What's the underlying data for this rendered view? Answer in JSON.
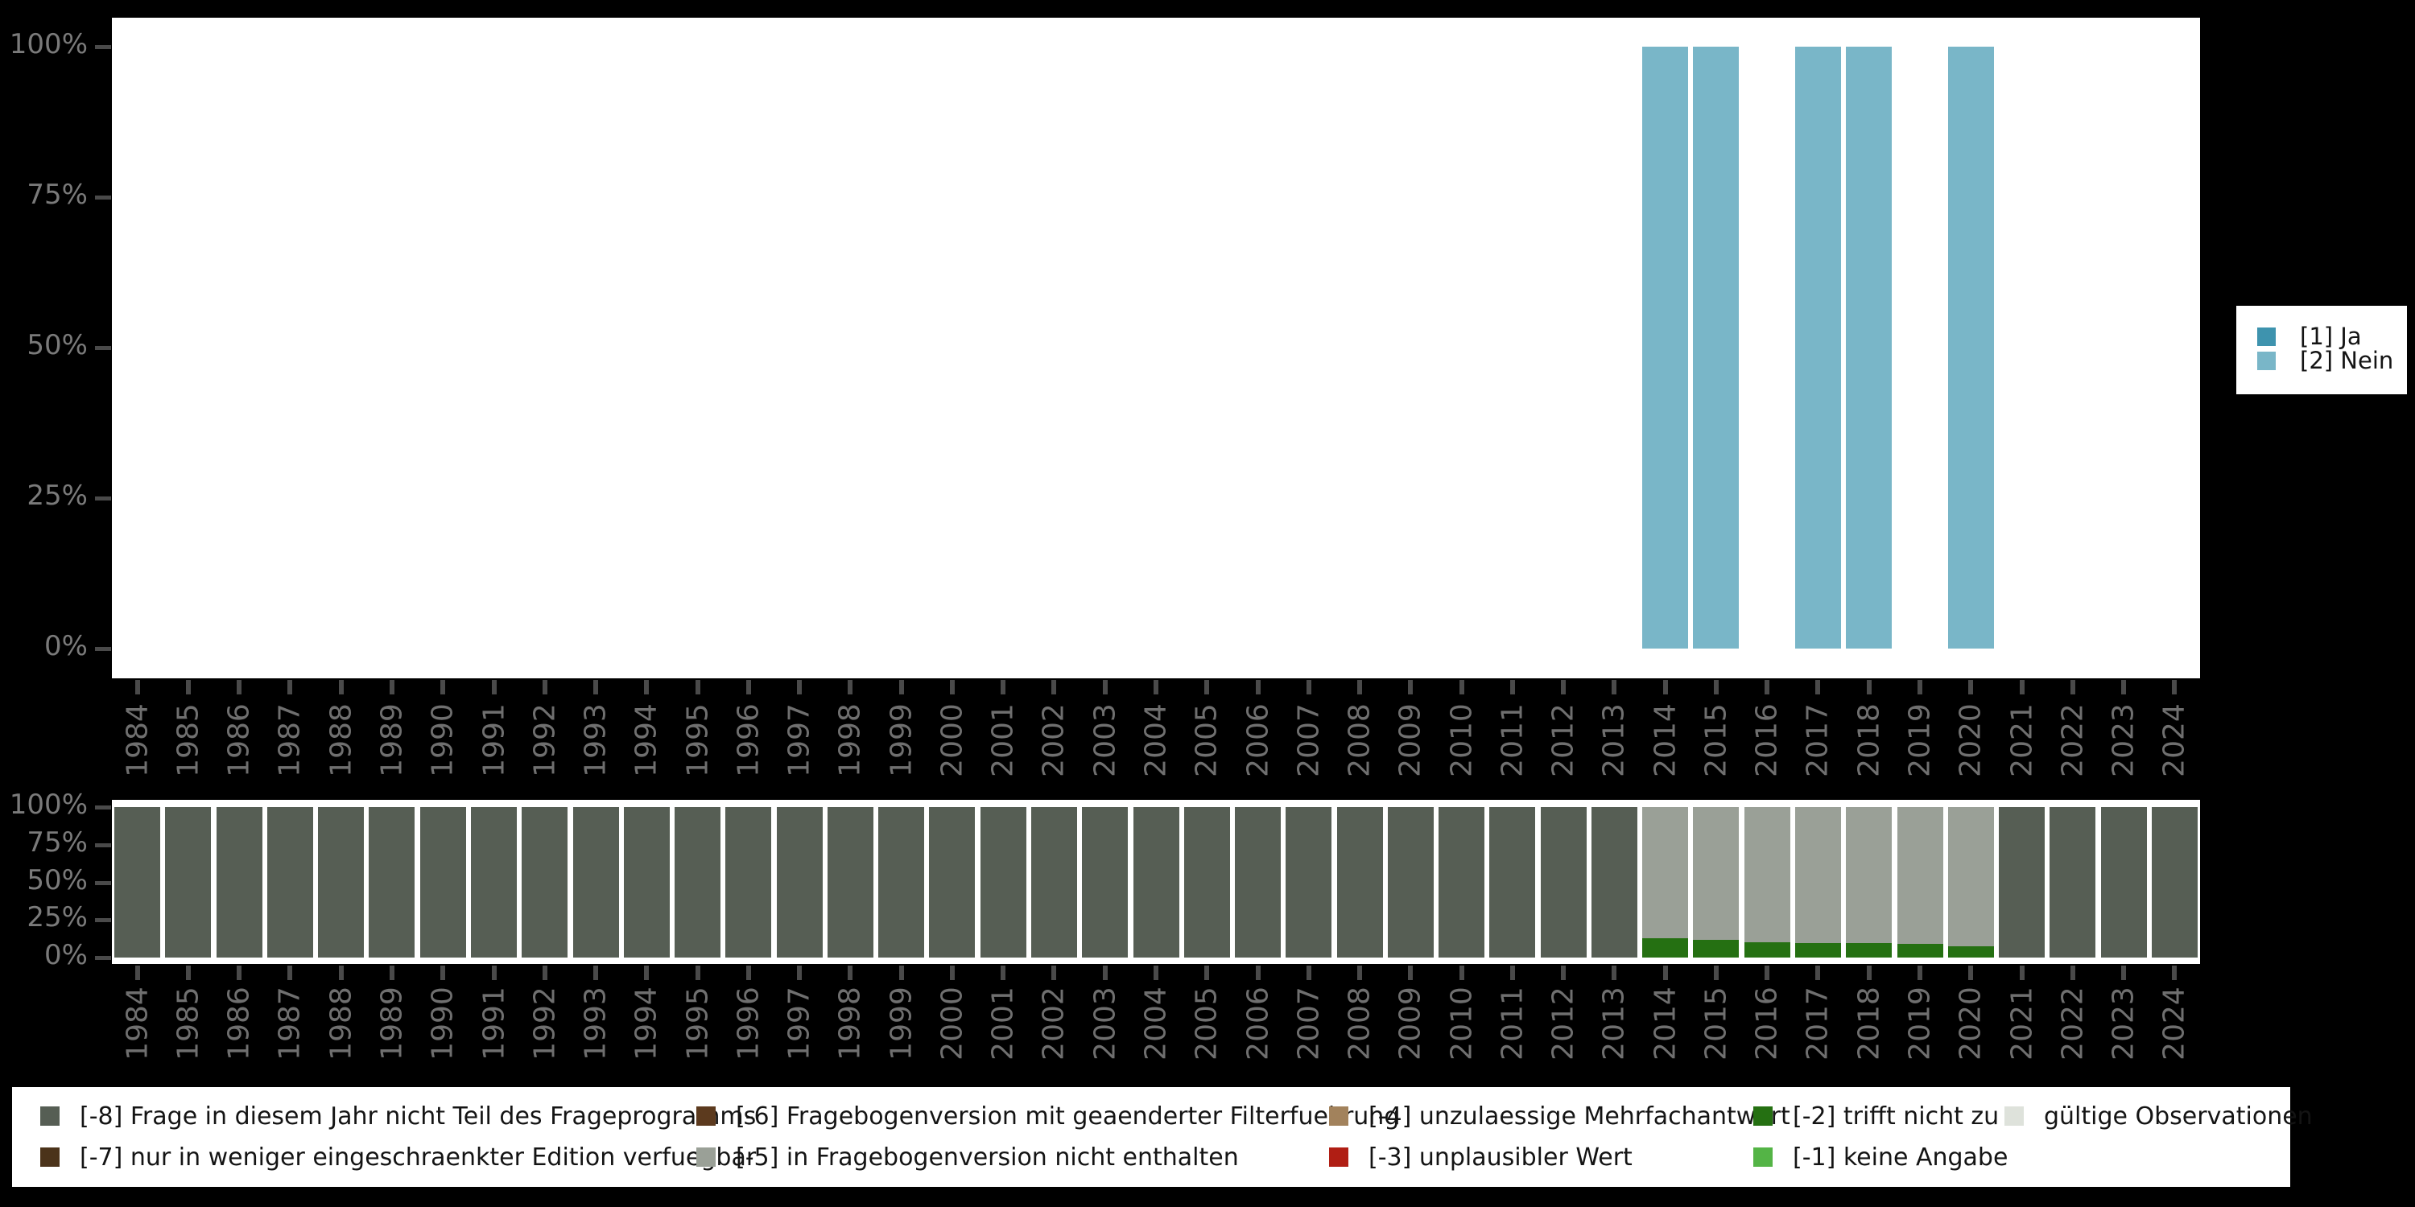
{
  "page": {
    "background": "#000000",
    "plot_background": "#ffffff"
  },
  "chart_data": [
    {
      "id": "availability",
      "type": "bar",
      "stacked": true,
      "title": "",
      "xlabel": "",
      "ylabel": "",
      "ylim": [
        0,
        100
      ],
      "grid": false,
      "legend_position": "right",
      "y_ticks": [
        "100%",
        "75%",
        "50%",
        "25%",
        "0%"
      ],
      "categories": [
        "1984",
        "1985",
        "1986",
        "1987",
        "1988",
        "1989",
        "1990",
        "1991",
        "1992",
        "1993",
        "1994",
        "1995",
        "1996",
        "1997",
        "1998",
        "1999",
        "2000",
        "2001",
        "2002",
        "2003",
        "2004",
        "2005",
        "2006",
        "2007",
        "2008",
        "2009",
        "2010",
        "2011",
        "2012",
        "2013",
        "2014",
        "2015",
        "2016",
        "2017",
        "2018",
        "2019",
        "2020",
        "2021",
        "2022",
        "2023",
        "2024"
      ],
      "series": [
        {
          "name": "[1] Ja",
          "color": "#3e93ae",
          "values": [
            0,
            0,
            0,
            0,
            0,
            0,
            0,
            0,
            0,
            0,
            0,
            0,
            0,
            0,
            0,
            0,
            0,
            0,
            0,
            0,
            0,
            0,
            0,
            0,
            0,
            0,
            0,
            0,
            0,
            0,
            0,
            0,
            0,
            0,
            0,
            0,
            0,
            0,
            0,
            0,
            0
          ]
        },
        {
          "name": "[2] Nein",
          "color": "#79b6c8",
          "values": [
            0,
            0,
            0,
            0,
            0,
            0,
            0,
            0,
            0,
            0,
            0,
            0,
            0,
            0,
            0,
            0,
            0,
            0,
            0,
            0,
            0,
            0,
            0,
            0,
            0,
            0,
            0,
            0,
            0,
            0,
            100,
            100,
            0,
            100,
            100,
            0,
            100,
            0,
            0,
            0,
            0
          ]
        }
      ]
    },
    {
      "id": "missings",
      "type": "bar",
      "stacked": true,
      "title": "",
      "xlabel": "",
      "ylabel": "",
      "ylim": [
        0,
        100
      ],
      "grid": false,
      "legend_position": "bottom",
      "y_ticks": [
        "100%",
        "75%",
        "50%",
        "25%",
        "0%"
      ],
      "categories": [
        "1984",
        "1985",
        "1986",
        "1987",
        "1988",
        "1989",
        "1990",
        "1991",
        "1992",
        "1993",
        "1994",
        "1995",
        "1996",
        "1997",
        "1998",
        "1999",
        "2000",
        "2001",
        "2002",
        "2003",
        "2004",
        "2005",
        "2006",
        "2007",
        "2008",
        "2009",
        "2010",
        "2011",
        "2012",
        "2013",
        "2014",
        "2015",
        "2016",
        "2017",
        "2018",
        "2019",
        "2020",
        "2021",
        "2022",
        "2023",
        "2024"
      ],
      "series": [
        {
          "name": "[-8] Frage in diesem Jahr nicht Teil des Frageprogramms",
          "color": "#565e54",
          "values": [
            100,
            100,
            100,
            100,
            100,
            100,
            100,
            100,
            100,
            100,
            100,
            100,
            100,
            100,
            100,
            100,
            100,
            100,
            100,
            100,
            100,
            100,
            100,
            100,
            100,
            100,
            100,
            100,
            100,
            100,
            0,
            0,
            0,
            0,
            0,
            0,
            0,
            100,
            100,
            100,
            100
          ]
        },
        {
          "name": "[-7] nur in weniger eingeschraenkter Edition verfuegbar",
          "color": "#4b331a",
          "values": [
            0,
            0,
            0,
            0,
            0,
            0,
            0,
            0,
            0,
            0,
            0,
            0,
            0,
            0,
            0,
            0,
            0,
            0,
            0,
            0,
            0,
            0,
            0,
            0,
            0,
            0,
            0,
            0,
            0,
            0,
            0,
            0,
            0,
            0,
            0,
            0,
            0,
            0,
            0,
            0,
            0
          ]
        },
        {
          "name": "[-6] Fragebogenversion mit geaenderter Filterfuehrung",
          "color": "#5c3a1e",
          "values": [
            0,
            0,
            0,
            0,
            0,
            0,
            0,
            0,
            0,
            0,
            0,
            0,
            0,
            0,
            0,
            0,
            0,
            0,
            0,
            0,
            0,
            0,
            0,
            0,
            0,
            0,
            0,
            0,
            0,
            0,
            0,
            0,
            0,
            0,
            0,
            0,
            0,
            0,
            0,
            0,
            0
          ]
        },
        {
          "name": "[-5] in Fragebogenversion nicht enthalten",
          "color": "#9aa097",
          "values": [
            0,
            0,
            0,
            0,
            0,
            0,
            0,
            0,
            0,
            0,
            0,
            0,
            0,
            0,
            0,
            0,
            0,
            0,
            0,
            0,
            0,
            0,
            0,
            0,
            0,
            0,
            0,
            0,
            0,
            0,
            87,
            88,
            90,
            90.5,
            90.5,
            91,
            92.5,
            0,
            0,
            0,
            0
          ]
        },
        {
          "name": "[-4] unzulaessige Mehrfachantwort",
          "color": "#a2825c",
          "values": [
            0,
            0,
            0,
            0,
            0,
            0,
            0,
            0,
            0,
            0,
            0,
            0,
            0,
            0,
            0,
            0,
            0,
            0,
            0,
            0,
            0,
            0,
            0,
            0,
            0,
            0,
            0,
            0,
            0,
            0,
            0,
            0,
            0,
            0,
            0,
            0,
            0,
            0,
            0,
            0,
            0
          ]
        },
        {
          "name": "[-3] unplausibler Wert",
          "color": "#b01e14",
          "values": [
            0,
            0,
            0,
            0,
            0,
            0,
            0,
            0,
            0,
            0,
            0,
            0,
            0,
            0,
            0,
            0,
            0,
            0,
            0,
            0,
            0,
            0,
            0,
            0,
            0,
            0,
            0,
            0,
            0,
            0,
            0,
            0,
            0,
            0,
            0,
            0,
            0,
            0,
            0,
            0,
            0
          ]
        },
        {
          "name": "[-2] trifft nicht zu",
          "color": "#257012",
          "values": [
            0,
            0,
            0,
            0,
            0,
            0,
            0,
            0,
            0,
            0,
            0,
            0,
            0,
            0,
            0,
            0,
            0,
            0,
            0,
            0,
            0,
            0,
            0,
            0,
            0,
            0,
            0,
            0,
            0,
            0,
            13,
            12,
            10,
            9.5,
            9.5,
            9,
            7.5,
            0,
            0,
            0,
            0
          ]
        },
        {
          "name": "[-1] keine Angabe",
          "color": "#54b446",
          "values": [
            0,
            0,
            0,
            0,
            0,
            0,
            0,
            0,
            0,
            0,
            0,
            0,
            0,
            0,
            0,
            0,
            0,
            0,
            0,
            0,
            0,
            0,
            0,
            0,
            0,
            0,
            0,
            0,
            0,
            0,
            0,
            0,
            0,
            0,
            0,
            0,
            0,
            0,
            0,
            0,
            0
          ]
        },
        {
          "name": "gültige Observationen",
          "color": "#dee2db",
          "values": [
            0,
            0,
            0,
            0,
            0,
            0,
            0,
            0,
            0,
            0,
            0,
            0,
            0,
            0,
            0,
            0,
            0,
            0,
            0,
            0,
            0,
            0,
            0,
            0,
            0,
            0,
            0,
            0,
            0,
            0,
            0,
            0,
            0,
            0,
            0,
            0,
            0,
            0,
            0,
            0,
            0
          ]
        }
      ]
    }
  ]
}
